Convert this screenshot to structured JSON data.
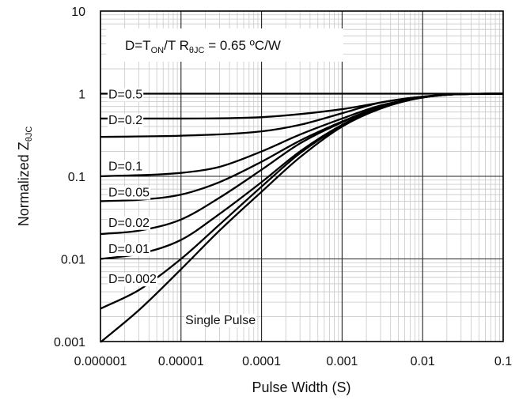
{
  "chart_data": {
    "type": "line",
    "title": "",
    "xlabel": "Pulse Width (S)",
    "ylabel": {
      "main": "Normalized Z",
      "sub": "θJC"
    },
    "xscale": "log",
    "yscale": "log",
    "xlim": [
      1e-06,
      0.1
    ],
    "ylim": [
      0.001,
      10
    ],
    "grid": true,
    "xticks": [
      {
        "value": 1e-06,
        "label": "0.000001"
      },
      {
        "value": 1e-05,
        "label": "0.00001"
      },
      {
        "value": 0.0001,
        "label": "0.0001"
      },
      {
        "value": 0.001,
        "label": "0.001"
      },
      {
        "value": 0.01,
        "label": "0.01"
      },
      {
        "value": 0.1,
        "label": "0.1"
      }
    ],
    "yticks": [
      {
        "value": 0.001,
        "label": "0.001"
      },
      {
        "value": 0.01,
        "label": "0.01"
      },
      {
        "value": 0.1,
        "label": "0.1"
      },
      {
        "value": 1,
        "label": "1"
      },
      {
        "value": 10,
        "label": "10"
      }
    ],
    "annotation": {
      "parts": [
        {
          "text": "D=T",
          "sub": false
        },
        {
          "text": "ON",
          "sub": true
        },
        {
          "text": "/T  R",
          "sub": false
        },
        {
          "text": "θJC",
          "sub": true
        },
        {
          "text": " = 0.65 ºC/W",
          "sub": false
        }
      ]
    },
    "series": [
      {
        "name": "D=0.5",
        "label_at": [
          1e-06,
          1.0
        ],
        "points": [
          [
            1e-06,
            1.0
          ],
          [
            0.0001,
            1.0
          ],
          [
            0.001,
            1.0
          ],
          [
            0.01,
            1.0
          ],
          [
            0.1,
            1.0
          ]
        ]
      },
      {
        "name": "D=0.2",
        "label_at": [
          1e-06,
          0.49
        ],
        "points": [
          [
            1e-06,
            0.5
          ],
          [
            1e-05,
            0.5
          ],
          [
            0.0001,
            0.52
          ],
          [
            0.001,
            0.65
          ],
          [
            0.005,
            0.85
          ],
          [
            0.01,
            0.92
          ],
          [
            0.03,
            0.99
          ],
          [
            0.1,
            1.0
          ]
        ]
      },
      {
        "name": "D=0.1",
        "label_at": [
          1e-06,
          0.135
        ],
        "points": [
          [
            1e-06,
            0.3
          ],
          [
            1e-05,
            0.31
          ],
          [
            0.0001,
            0.35
          ],
          [
            0.0003,
            0.42
          ],
          [
            0.001,
            0.58
          ],
          [
            0.003,
            0.78
          ],
          [
            0.01,
            0.92
          ],
          [
            0.03,
            0.99
          ],
          [
            0.1,
            1.0
          ]
        ]
      },
      {
        "name": "D=0.05",
        "label_at": [
          1e-06,
          0.065
        ],
        "points": [
          [
            1e-06,
            0.1
          ],
          [
            1e-05,
            0.11
          ],
          [
            3e-05,
            0.13
          ],
          [
            0.0001,
            0.2
          ],
          [
            0.0003,
            0.32
          ],
          [
            0.001,
            0.5
          ],
          [
            0.003,
            0.72
          ],
          [
            0.01,
            0.9
          ],
          [
            0.03,
            0.99
          ],
          [
            0.1,
            1.0
          ]
        ]
      },
      {
        "name": "D=0.02",
        "label_at": [
          1e-06,
          0.028
        ],
        "points": [
          [
            1e-06,
            0.05
          ],
          [
            3e-06,
            0.052
          ],
          [
            1e-05,
            0.06
          ],
          [
            3e-05,
            0.085
          ],
          [
            0.0001,
            0.15
          ],
          [
            0.0003,
            0.27
          ],
          [
            0.001,
            0.46
          ],
          [
            0.003,
            0.7
          ],
          [
            0.01,
            0.9
          ],
          [
            0.03,
            0.99
          ],
          [
            0.1,
            1.0
          ]
        ]
      },
      {
        "name": "D=0.01",
        "label_at": [
          1e-06,
          0.0135
        ],
        "points": [
          [
            1e-06,
            0.02
          ],
          [
            3e-06,
            0.022
          ],
          [
            1e-05,
            0.03
          ],
          [
            3e-05,
            0.055
          ],
          [
            0.0001,
            0.12
          ],
          [
            0.0003,
            0.25
          ],
          [
            0.001,
            0.45
          ],
          [
            0.003,
            0.7
          ],
          [
            0.01,
            0.9
          ],
          [
            0.03,
            0.99
          ],
          [
            0.1,
            1.0
          ]
        ]
      },
      {
        "name": "D=0.002",
        "label_at": [
          1e-06,
          0.0058
        ],
        "points": [
          [
            1e-06,
            0.01
          ],
          [
            3e-06,
            0.0115
          ],
          [
            1e-05,
            0.017
          ],
          [
            3e-05,
            0.035
          ],
          [
            0.0001,
            0.085
          ],
          [
            0.0003,
            0.2
          ],
          [
            0.001,
            0.42
          ],
          [
            0.003,
            0.68
          ],
          [
            0.01,
            0.9
          ],
          [
            0.03,
            0.99
          ],
          [
            0.1,
            1.0
          ]
        ]
      },
      {
        "name": "",
        "label_at": null,
        "points": [
          [
            1e-06,
            0.0025
          ],
          [
            3e-06,
            0.0042
          ],
          [
            1e-05,
            0.01
          ],
          [
            3e-05,
            0.026
          ],
          [
            0.0001,
            0.075
          ],
          [
            0.0003,
            0.19
          ],
          [
            0.001,
            0.41
          ],
          [
            0.003,
            0.67
          ],
          [
            0.01,
            0.9
          ],
          [
            0.03,
            0.99
          ],
          [
            0.1,
            1.0
          ]
        ]
      },
      {
        "name": "Single Pulse",
        "label_at": [
          9e-06,
          0.00185
        ],
        "points": [
          [
            1e-06,
            0.00098
          ],
          [
            3e-06,
            0.0024
          ],
          [
            1e-05,
            0.0075
          ],
          [
            3e-05,
            0.022
          ],
          [
            0.0001,
            0.065
          ],
          [
            0.0003,
            0.17
          ],
          [
            0.001,
            0.4
          ],
          [
            0.003,
            0.66
          ],
          [
            0.01,
            0.9
          ],
          [
            0.03,
            0.99
          ],
          [
            0.1,
            1.0
          ]
        ]
      }
    ]
  }
}
